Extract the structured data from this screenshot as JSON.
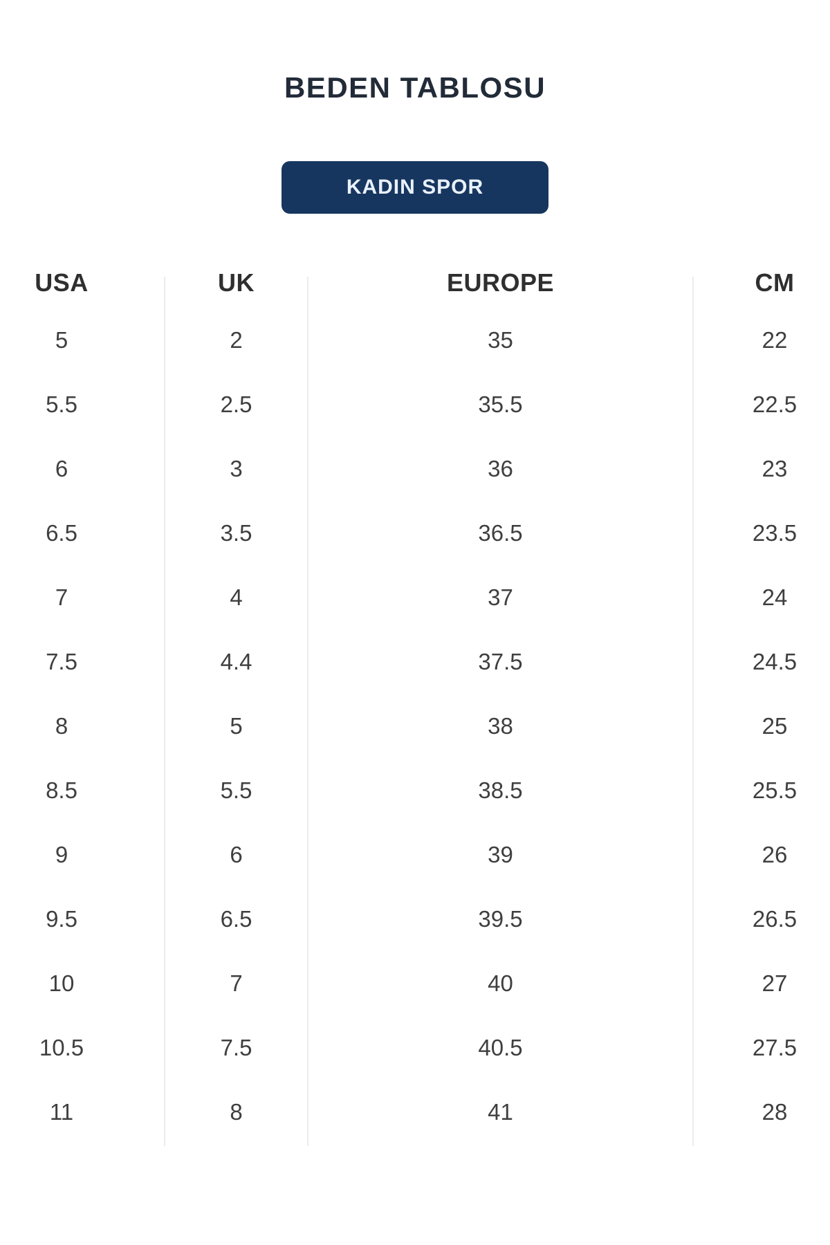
{
  "page": {
    "title": "BEDEN TABLOSU"
  },
  "category_button": {
    "label": "KADIN SPOR"
  },
  "size_table": {
    "columns": [
      {
        "key": "usa",
        "label": "USA"
      },
      {
        "key": "uk",
        "label": "UK"
      },
      {
        "key": "europe",
        "label": "EUROPE"
      },
      {
        "key": "cm",
        "label": "CM"
      }
    ],
    "rows": [
      [
        "5",
        "2",
        "35",
        "22"
      ],
      [
        "5.5",
        "2.5",
        "35.5",
        "22.5"
      ],
      [
        "6",
        "3",
        "36",
        "23"
      ],
      [
        "6.5",
        "3.5",
        "36.5",
        "23.5"
      ],
      [
        "7",
        "4",
        "37",
        "24"
      ],
      [
        "7.5",
        "4.4",
        "37.5",
        "24.5"
      ],
      [
        "8",
        "5",
        "38",
        "25"
      ],
      [
        "8.5",
        "5.5",
        "38.5",
        "25.5"
      ],
      [
        "9",
        "6",
        "39",
        "26"
      ],
      [
        "9.5",
        "6.5",
        "39.5",
        "26.5"
      ],
      [
        "10",
        "7",
        "40",
        "27"
      ],
      [
        "10.5",
        "7.5",
        "40.5",
        "27.5"
      ],
      [
        "11",
        "8",
        "41",
        "28"
      ]
    ]
  },
  "colors": {
    "accent_navy": "#17365f",
    "title_text": "#222b38",
    "button_text": "#e9f1fb",
    "header_text": "#2f2f2f",
    "cell_text": "#3f3f3f",
    "divider": "#ececec"
  }
}
